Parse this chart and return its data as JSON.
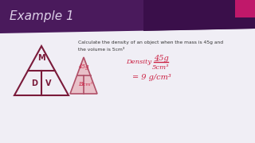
{
  "bg_color": "#f0eef5",
  "header_color": "#4a1a5c",
  "header_accent_color": "#c0186a",
  "header_text": "Example 1",
  "header_text_color": "#ddd0e8",
  "question_line1": "Calculate the density of an object when the mass is 45g and",
  "question_line2": "the volume is 5cm³",
  "question_color": "#333333",
  "tri1_edge_color": "#7a1a3a",
  "tri2_face_color": "#e8c0c8",
  "tri2_edge_color": "#b05068",
  "hw_color": "#cc2244",
  "calc_label": "Density =",
  "calc_num": "45g",
  "calc_den": "5cm³",
  "calc_result": "= 9 g/cm³"
}
